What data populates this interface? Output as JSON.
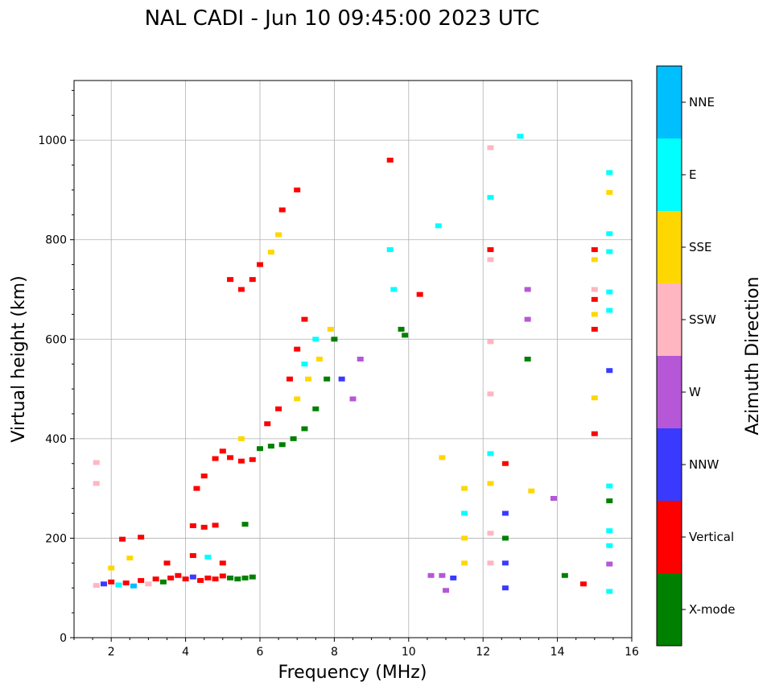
{
  "chart_data": {
    "type": "scatter",
    "title": "NAL CADI - Jun 10 09:45:00 2023 UTC",
    "xlabel": "Frequency (MHz)",
    "ylabel": "Virtual height (km)",
    "xlim": [
      1,
      16
    ],
    "ylim": [
      0,
      1120
    ],
    "xticks": [
      2,
      4,
      6,
      8,
      10,
      12,
      14,
      16
    ],
    "yticks": [
      0,
      200,
      400,
      600,
      800,
      1000
    ],
    "grid": true,
    "colorbar": {
      "label": "Azimuth Direction",
      "categories": [
        {
          "name": "X-mode",
          "color": "#008000"
        },
        {
          "name": "Vertical",
          "color": "#ff0000"
        },
        {
          "name": "NNW",
          "color": "#3a3aff"
        },
        {
          "name": "W",
          "color": "#b557d6"
        },
        {
          "name": "SSW",
          "color": "#ffb6c1"
        },
        {
          "name": "SSE",
          "color": "#ffd700"
        },
        {
          "name": "E",
          "color": "#00ffff"
        },
        {
          "name": "NNE",
          "color": "#00bfff"
        }
      ]
    },
    "points": [
      [
        1.6,
        105,
        "SSW"
      ],
      [
        1.8,
        108,
        "NNW"
      ],
      [
        2.0,
        112,
        "Vertical"
      ],
      [
        2.2,
        106,
        "E"
      ],
      [
        2.4,
        110,
        "Vertical"
      ],
      [
        2.6,
        104,
        "NNE"
      ],
      [
        2.8,
        115,
        "Vertical"
      ],
      [
        3.0,
        108,
        "SSW"
      ],
      [
        3.2,
        118,
        "Vertical"
      ],
      [
        3.4,
        112,
        "X-mode"
      ],
      [
        3.6,
        120,
        "Vertical"
      ],
      [
        3.8,
        125,
        "Vertical"
      ],
      [
        4.0,
        118,
        "Vertical"
      ],
      [
        4.2,
        122,
        "NNW"
      ],
      [
        4.4,
        115,
        "Vertical"
      ],
      [
        4.6,
        120,
        "Vertical"
      ],
      [
        4.8,
        118,
        "Vertical"
      ],
      [
        5.0,
        124,
        "Vertical"
      ],
      [
        5.2,
        120,
        "X-mode"
      ],
      [
        5.4,
        118,
        "X-mode"
      ],
      [
        5.6,
        120,
        "X-mode"
      ],
      [
        5.8,
        122,
        "X-mode"
      ],
      [
        2.0,
        140,
        "SSE"
      ],
      [
        2.5,
        160,
        "SSE"
      ],
      [
        3.5,
        150,
        "Vertical"
      ],
      [
        4.2,
        165,
        "Vertical"
      ],
      [
        4.6,
        162,
        "E"
      ],
      [
        5.0,
        150,
        "Vertical"
      ],
      [
        2.3,
        198,
        "Vertical"
      ],
      [
        2.8,
        202,
        "Vertical"
      ],
      [
        4.2,
        225,
        "Vertical"
      ],
      [
        4.5,
        222,
        "Vertical"
      ],
      [
        4.8,
        226,
        "Vertical"
      ],
      [
        5.6,
        228,
        "X-mode"
      ],
      [
        1.6,
        352,
        "SSW"
      ],
      [
        1.6,
        310,
        "SSW"
      ],
      [
        4.3,
        300,
        "Vertical"
      ],
      [
        4.5,
        325,
        "Vertical"
      ],
      [
        4.8,
        360,
        "Vertical"
      ],
      [
        5.0,
        375,
        "Vertical"
      ],
      [
        5.2,
        362,
        "Vertical"
      ],
      [
        5.5,
        355,
        "Vertical"
      ],
      [
        5.8,
        358,
        "Vertical"
      ],
      [
        6.0,
        380,
        "X-mode"
      ],
      [
        6.3,
        385,
        "X-mode"
      ],
      [
        6.6,
        388,
        "X-mode"
      ],
      [
        6.9,
        400,
        "X-mode"
      ],
      [
        7.2,
        420,
        "X-mode"
      ],
      [
        7.5,
        460,
        "X-mode"
      ],
      [
        7.8,
        520,
        "X-mode"
      ],
      [
        8.0,
        600,
        "X-mode"
      ],
      [
        5.5,
        400,
        "SSE"
      ],
      [
        6.2,
        430,
        "Vertical"
      ],
      [
        6.5,
        460,
        "Vertical"
      ],
      [
        6.8,
        520,
        "Vertical"
      ],
      [
        7.0,
        580,
        "Vertical"
      ],
      [
        7.2,
        640,
        "Vertical"
      ],
      [
        7.0,
        480,
        "SSE"
      ],
      [
        7.3,
        520,
        "SSE"
      ],
      [
        7.6,
        560,
        "SSE"
      ],
      [
        7.9,
        620,
        "SSE"
      ],
      [
        7.2,
        550,
        "E"
      ],
      [
        7.5,
        600,
        "E"
      ],
      [
        8.2,
        520,
        "NNW"
      ],
      [
        8.5,
        480,
        "W"
      ],
      [
        8.7,
        560,
        "W"
      ],
      [
        5.2,
        720,
        "Vertical"
      ],
      [
        5.5,
        700,
        "Vertical"
      ],
      [
        5.8,
        720,
        "Vertical"
      ],
      [
        6.0,
        750,
        "Vertical"
      ],
      [
        6.3,
        775,
        "SSE"
      ],
      [
        6.5,
        810,
        "SSE"
      ],
      [
        6.6,
        860,
        "Vertical"
      ],
      [
        7.0,
        900,
        "Vertical"
      ],
      [
        9.5,
        960,
        "Vertical"
      ],
      [
        9.5,
        780,
        "E"
      ],
      [
        9.6,
        700,
        "E"
      ],
      [
        9.8,
        620,
        "X-mode"
      ],
      [
        9.9,
        608,
        "X-mode"
      ],
      [
        10.3,
        690,
        "Vertical"
      ],
      [
        10.8,
        828,
        "E"
      ],
      [
        10.9,
        362,
        "SSE"
      ],
      [
        10.6,
        125,
        "W"
      ],
      [
        10.9,
        125,
        "W"
      ],
      [
        11.2,
        120,
        "NNW"
      ],
      [
        11.5,
        300,
        "SSE"
      ],
      [
        11.5,
        250,
        "E"
      ],
      [
        11.5,
        200,
        "SSE"
      ],
      [
        11.5,
        150,
        "SSE"
      ],
      [
        11.0,
        95,
        "W"
      ],
      [
        12.2,
        985,
        "SSW"
      ],
      [
        12.2,
        885,
        "E"
      ],
      [
        12.2,
        780,
        "Vertical"
      ],
      [
        12.2,
        760,
        "SSW"
      ],
      [
        12.2,
        595,
        "SSW"
      ],
      [
        12.2,
        490,
        "SSW"
      ],
      [
        12.2,
        370,
        "E"
      ],
      [
        12.2,
        310,
        "SSE"
      ],
      [
        12.2,
        210,
        "SSW"
      ],
      [
        12.2,
        150,
        "SSW"
      ],
      [
        12.6,
        350,
        "Vertical"
      ],
      [
        12.6,
        250,
        "NNW"
      ],
      [
        12.6,
        200,
        "X-mode"
      ],
      [
        12.6,
        150,
        "NNW"
      ],
      [
        12.6,
        100,
        "NNW"
      ],
      [
        13.2,
        700,
        "W"
      ],
      [
        13.2,
        640,
        "W"
      ],
      [
        13.2,
        560,
        "X-mode"
      ],
      [
        13.0,
        1008,
        "E"
      ],
      [
        13.3,
        295,
        "SSE"
      ],
      [
        13.9,
        280,
        "W"
      ],
      [
        14.2,
        125,
        "X-mode"
      ],
      [
        14.7,
        108,
        "Vertical"
      ],
      [
        15.0,
        780,
        "Vertical"
      ],
      [
        15.0,
        760,
        "SSE"
      ],
      [
        15.0,
        700,
        "SSW"
      ],
      [
        15.0,
        680,
        "Vertical"
      ],
      [
        15.0,
        650,
        "SSE"
      ],
      [
        15.0,
        620,
        "Vertical"
      ],
      [
        15.0,
        482,
        "SSE"
      ],
      [
        15.0,
        410,
        "Vertical"
      ],
      [
        15.4,
        935,
        "E"
      ],
      [
        15.4,
        895,
        "SSE"
      ],
      [
        15.4,
        812,
        "E"
      ],
      [
        15.4,
        776,
        "E"
      ],
      [
        15.4,
        695,
        "E"
      ],
      [
        15.4,
        658,
        "E"
      ],
      [
        15.4,
        537,
        "NNW"
      ],
      [
        15.4,
        305,
        "E"
      ],
      [
        15.4,
        275,
        "X-mode"
      ],
      [
        15.4,
        215,
        "E"
      ],
      [
        15.4,
        185,
        "E"
      ],
      [
        15.4,
        148,
        "W"
      ],
      [
        15.4,
        93,
        "E"
      ]
    ]
  }
}
